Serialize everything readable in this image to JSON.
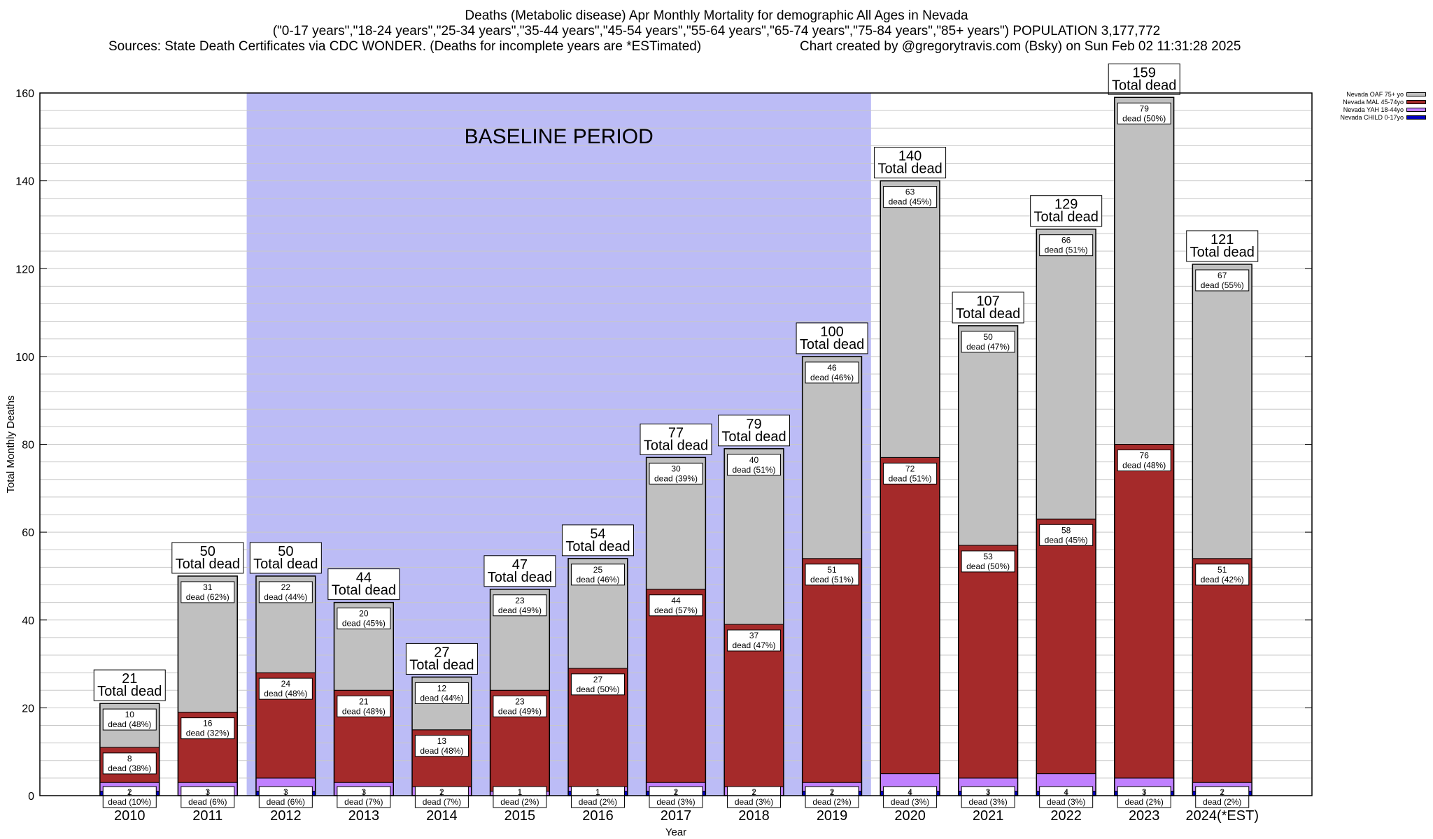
{
  "title": {
    "line1": "Deaths (Metabolic disease) Apr Monthly Mortality for demographic All Ages in Nevada",
    "line2": "(\"0-17 years\",\"18-24 years\",\"25-34 years\",\"35-44 years\",\"45-54 years\",\"55-64 years\",\"65-74 years\",\"75-84 years\",\"85+ years\") POPULATION 3,177,772",
    "sources": "Sources: State Death Certificates via CDC WONDER. (Deaths for incomplete years are *ESTimated)",
    "credit": "Chart created by @gregorytravis.com (Bsky) on Sun Feb 02 11:31:28 2025"
  },
  "chart_data": {
    "type": "bar",
    "stacked": true,
    "categories": [
      "2010",
      "2011",
      "2012",
      "2013",
      "2014",
      "2015",
      "2016",
      "2017",
      "2018",
      "2019",
      "2020",
      "2021",
      "2022",
      "2023",
      "2024(*EST)"
    ],
    "series": [
      {
        "name": "Nevada CHILD 0-17yo",
        "color": "#0000c0",
        "values": [
          1,
          0,
          1,
          0,
          0,
          0,
          1,
          1,
          0,
          1,
          1,
          1,
          1,
          1,
          1
        ]
      },
      {
        "name": "Nevada YAH 18-44yo",
        "color": "#c080ff",
        "values": [
          2,
          3,
          3,
          3,
          2,
          1,
          1,
          2,
          2,
          2,
          4,
          3,
          4,
          3,
          2
        ],
        "labels": [
          "2\ndead (10%)",
          "3\ndead (6%)",
          "3\ndead (6%)",
          "3\ndead (7%)",
          "2\ndead (7%)",
          "1\ndead (2%)",
          "1\ndead (2%)",
          "2\ndead (3%)",
          "2\ndead (3%)",
          "2\ndead (2%)",
          "4\ndead (3%)",
          "3\ndead (3%)",
          "4\ndead (3%)",
          "3\ndead (2%)",
          "2\ndead (2%)"
        ]
      },
      {
        "name": "Nevada MAL 45-74yo",
        "color": "#a52a2a",
        "values": [
          8,
          16,
          24,
          21,
          13,
          23,
          27,
          44,
          37,
          51,
          72,
          53,
          58,
          76,
          51
        ],
        "labels": [
          "8\ndead (38%)",
          "16\ndead (32%)",
          "24\ndead (48%)",
          "21\ndead (48%)",
          "13\ndead (48%)",
          "23\ndead (49%)",
          "27\ndead (50%)",
          "44\ndead (57%)",
          "37\ndead (47%)",
          "51\ndead (51%)",
          "72\ndead (51%)",
          "53\ndead (50%)",
          "58\ndead (45%)",
          "76\ndead (48%)",
          "51\ndead (42%)"
        ]
      },
      {
        "name": "Nevada OAF 75+ yo",
        "color": "#c0c0c0",
        "values": [
          10,
          31,
          22,
          20,
          12,
          23,
          25,
          30,
          40,
          46,
          63,
          50,
          66,
          79,
          67
        ],
        "labels": [
          "10\ndead (48%)",
          "31\ndead (62%)",
          "22\ndead (44%)",
          "20\ndead (45%)",
          "12\ndead (44%)",
          "23\ndead (49%)",
          "25\ndead (46%)",
          "30\ndead (39%)",
          "40\ndead (51%)",
          "46\ndead (46%)",
          "63\ndead (45%)",
          "50\ndead (47%)",
          "66\ndead (51%)",
          "79\ndead (50%)",
          "67\ndead (55%)"
        ]
      }
    ],
    "totals": [
      21,
      50,
      50,
      44,
      27,
      47,
      54,
      77,
      79,
      100,
      140,
      107,
      129,
      159,
      121
    ],
    "total_label_text": "Total dead",
    "baseline_label": "BASELINE PERIOD",
    "baseline_color": "#bcbcf6",
    "baseline_range": [
      "2012",
      "2019"
    ],
    "xlabel": "Year",
    "ylabel": "Total Monthly Deaths",
    "ylim": [
      0,
      160
    ],
    "yticks": [
      0,
      20,
      40,
      60,
      80,
      100,
      120,
      140,
      160
    ],
    "grid": true,
    "legend_position": "top-right"
  }
}
